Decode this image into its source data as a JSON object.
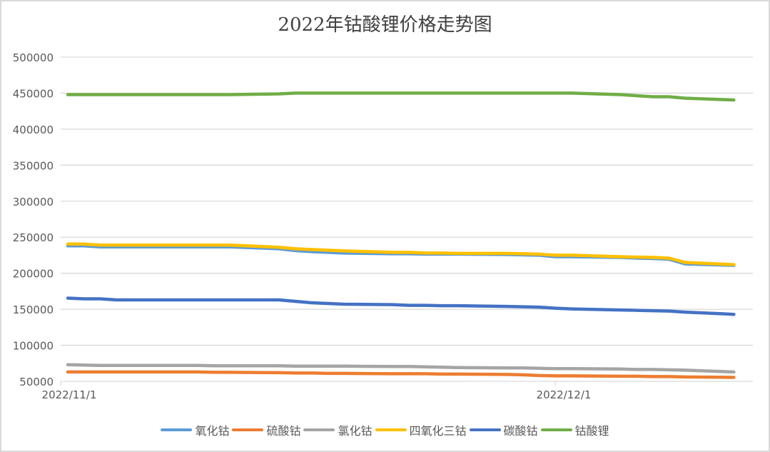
{
  "chart_data": {
    "type": "line",
    "title": "2022年钴酸锂价格走势图",
    "xlabel": "",
    "ylabel": "",
    "ylim": [
      50000,
      500000
    ],
    "yticks": [
      500000,
      450000,
      400000,
      350000,
      300000,
      250000,
      200000,
      150000,
      100000,
      50000
    ],
    "xtick_labels": [
      "2022/11/1",
      "2022/12/1"
    ],
    "grid": true,
    "legend_position": "bottom",
    "x": [
      "2022/11/1",
      "2022/11/2",
      "2022/11/3",
      "2022/11/4",
      "2022/11/7",
      "2022/11/8",
      "2022/11/9",
      "2022/11/10",
      "2022/11/11",
      "2022/11/14",
      "2022/11/15",
      "2022/11/16",
      "2022/11/17",
      "2022/11/18",
      "2022/11/21",
      "2022/11/22",
      "2022/11/23",
      "2022/11/24",
      "2022/11/25",
      "2022/11/28",
      "2022/11/29",
      "2022/11/30",
      "2022/12/1",
      "2022/12/2",
      "2022/12/5",
      "2022/12/6",
      "2022/12/7",
      "2022/12/8",
      "2022/12/9",
      "2022/12/12"
    ],
    "series": [
      {
        "name": "氧化钴",
        "color": "#5b9bd5",
        "values": [
          238000,
          238000,
          236500,
          236500,
          236500,
          236500,
          236500,
          236500,
          236500,
          234000,
          231500,
          230000,
          229000,
          228000,
          227000,
          227000,
          226500,
          226500,
          226500,
          226000,
          225500,
          225000,
          223000,
          223000,
          222000,
          221000,
          220500,
          219500,
          213000,
          211000
        ]
      },
      {
        "name": "硫酸钴",
        "color": "#ed7d31",
        "values": [
          63000,
          63000,
          63000,
          63000,
          63000,
          63000,
          63000,
          62500,
          62500,
          62000,
          61500,
          61500,
          61000,
          61000,
          60500,
          60500,
          60500,
          60000,
          60000,
          59500,
          59000,
          58000,
          57500,
          57500,
          57000,
          57000,
          56500,
          56500,
          56000,
          55500
        ]
      },
      {
        "name": "氯化钴",
        "color": "#a5a5a5",
        "values": [
          73000,
          72500,
          72000,
          72000,
          72000,
          72000,
          72000,
          71500,
          71500,
          71500,
          71000,
          71000,
          71000,
          71000,
          70500,
          70500,
          70000,
          69500,
          69000,
          68500,
          68500,
          68000,
          67500,
          67500,
          67000,
          66500,
          66500,
          66000,
          65500,
          63000
        ]
      },
      {
        "name": "四氧化三钴",
        "color": "#ffc000",
        "values": [
          240500,
          240500,
          239000,
          239000,
          239000,
          239000,
          239000,
          239000,
          239000,
          236000,
          234000,
          233000,
          232000,
          231000,
          229000,
          229000,
          228000,
          228000,
          227500,
          227500,
          227000,
          226500,
          225000,
          225000,
          223000,
          222500,
          222000,
          221000,
          215000,
          212000
        ]
      },
      {
        "name": "碳酸钴",
        "color": "#4472c4",
        "values": [
          165500,
          164500,
          164500,
          163000,
          163000,
          163000,
          163000,
          163000,
          163000,
          163000,
          161000,
          159000,
          158000,
          157000,
          156500,
          155500,
          155500,
          155000,
          155000,
          154000,
          153500,
          153000,
          151500,
          150500,
          149000,
          148500,
          148000,
          147500,
          146000,
          143000
        ]
      },
      {
        "name": "钴酸锂",
        "color": "#70ad47",
        "values": [
          448000,
          448000,
          448000,
          448000,
          448000,
          448000,
          448000,
          448000,
          448000,
          449000,
          450000,
          450000,
          450000,
          450000,
          450000,
          450000,
          450000,
          450000,
          450000,
          450000,
          450000,
          450000,
          450000,
          450000,
          448000,
          446500,
          445000,
          445000,
          443000,
          440500
        ]
      }
    ]
  },
  "title": "2022年钴酸锂价格走势图",
  "legend": [
    {
      "label": "氧化钴",
      "color": "#5b9bd5"
    },
    {
      "label": "硫酸钴",
      "color": "#ed7d31"
    },
    {
      "label": "氯化钴",
      "color": "#a5a5a5"
    },
    {
      "label": "四氧化三钴",
      "color": "#ffc000"
    },
    {
      "label": "碳酸钴",
      "color": "#4472c4"
    },
    {
      "label": "钴酸锂",
      "color": "#70ad47"
    }
  ]
}
